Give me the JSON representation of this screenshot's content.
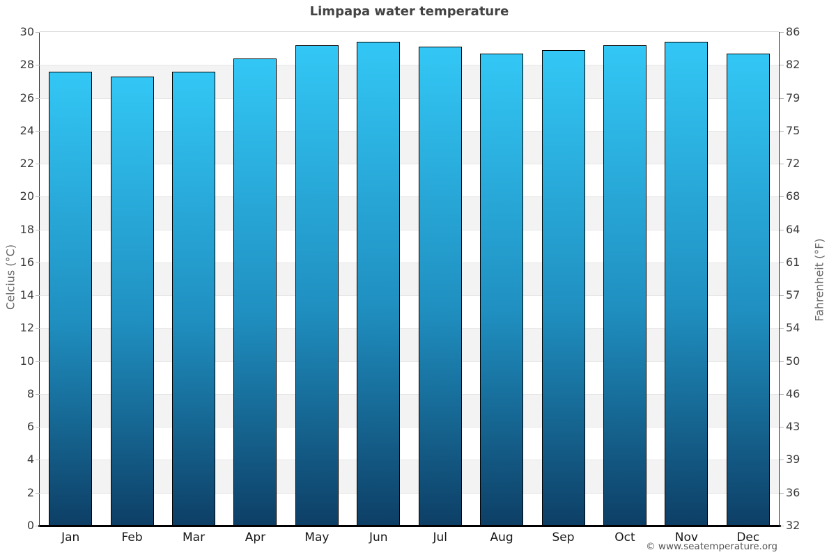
{
  "title": "Limpapa water temperature",
  "copyright": "© www.seatemperature.org",
  "chart_data": {
    "type": "bar",
    "title": "Limpapa water temperature",
    "categories": [
      "Jan",
      "Feb",
      "Mar",
      "Apr",
      "May",
      "Jun",
      "Jul",
      "Aug",
      "Sep",
      "Oct",
      "Nov",
      "Dec"
    ],
    "values": [
      27.6,
      27.3,
      27.6,
      28.4,
      29.2,
      29.4,
      29.1,
      28.7,
      28.9,
      29.2,
      29.4,
      28.7
    ],
    "unit": "°C",
    "ylabel_left": "Celcius (°C)",
    "ylabel_right": "Fahrenheit (°F)",
    "ylim": [
      0,
      30
    ],
    "celsius_ticks": [
      30,
      28,
      26,
      24,
      22,
      20,
      18,
      16,
      14,
      12,
      10,
      8,
      6,
      4,
      2,
      0
    ],
    "fahrenheit_ticks": [
      86,
      82,
      79,
      75,
      72,
      68,
      64,
      61,
      57,
      54,
      50,
      46,
      43,
      39,
      36,
      32
    ],
    "grid": true,
    "alternating_bands": true,
    "legend": "none",
    "colors": {
      "bar_gradient_top": "#33c7f5",
      "bar_gradient_mid": "#1f8fc0",
      "bar_gradient_bottom": "#0d3f66",
      "bar_border": "#000000",
      "band_alt": "#f3f3f3",
      "band_main": "#ffffff",
      "gridline": "#e7e7e7",
      "axis_line": "#333333",
      "bottom_axis": "#000000",
      "title_color": "#434343",
      "tick_label_color": "#3a3a3a",
      "axis_title_color": "#666666",
      "copyright_color": "#555555"
    }
  }
}
